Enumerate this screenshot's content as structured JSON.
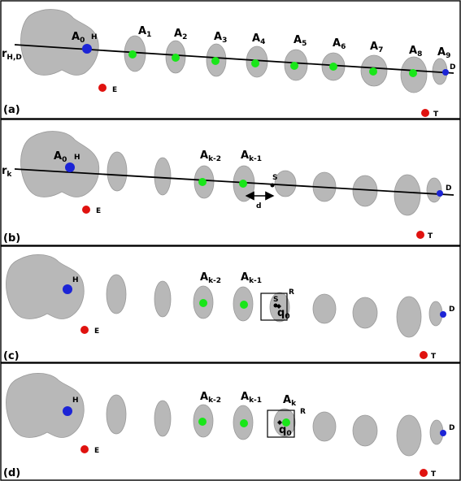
{
  "colors": {
    "anchor_point": "#19e619",
    "endpoint": "#1c24d6",
    "external_point": "#e0120f",
    "blob": "#b8b8b8",
    "line": "#000000"
  },
  "panels": [
    {
      "tag": "(a)",
      "line_label_main": "r",
      "line_label_sub": "H,D",
      "a0": {
        "main": "A",
        "sub": "0"
      },
      "h": "H",
      "d": "D",
      "e": "E",
      "t": "T",
      "anchors": [
        {
          "main": "A",
          "sub": "1"
        },
        {
          "main": "A",
          "sub": "2"
        },
        {
          "main": "A",
          "sub": "3"
        },
        {
          "main": "A",
          "sub": "4"
        },
        {
          "main": "A",
          "sub": "5"
        },
        {
          "main": "A",
          "sub": "6"
        },
        {
          "main": "A",
          "sub": "7"
        },
        {
          "main": "A",
          "sub": "8"
        },
        {
          "main": "A",
          "sub": "9"
        }
      ]
    },
    {
      "tag": "(b)",
      "line_label_main": "r",
      "line_label_sub": "k",
      "a0": {
        "main": "A",
        "sub": "0"
      },
      "h": "H",
      "d": "D",
      "e": "E",
      "t": "T",
      "anchors": [
        {
          "main": "A",
          "sub": "k-2"
        },
        {
          "main": "A",
          "sub": "k-1"
        }
      ],
      "s": "S",
      "dist": "d"
    },
    {
      "tag": "(c)",
      "h": "H",
      "d": "D",
      "e": "E",
      "t": "T",
      "anchors": [
        {
          "main": "A",
          "sub": "k-2"
        },
        {
          "main": "A",
          "sub": "k-1"
        }
      ],
      "s": "S",
      "r": "R",
      "q": {
        "main": "q",
        "sub": "0"
      }
    },
    {
      "tag": "(d)",
      "h": "H",
      "d": "D",
      "e": "E",
      "t": "T",
      "anchors": [
        {
          "main": "A",
          "sub": "k-2"
        },
        {
          "main": "A",
          "sub": "k-1"
        },
        {
          "main": "A",
          "sub": "k"
        }
      ],
      "r": "R",
      "q": {
        "main": "q",
        "sub": "0"
      }
    }
  ]
}
